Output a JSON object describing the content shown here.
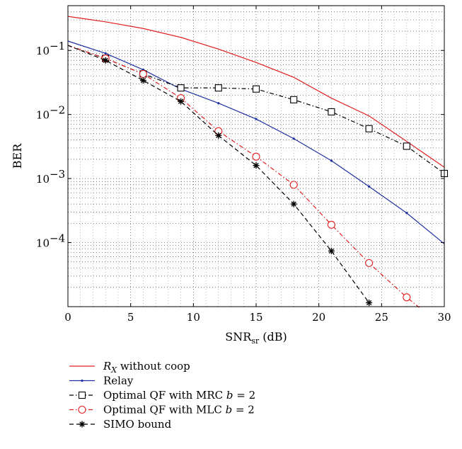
{
  "chart_data": {
    "type": "line",
    "xlabel": "SNR",
    "xlabel_sub": "sr",
    "xlabel_unit": "(dB)",
    "ylabel": "BER",
    "xlim": [
      0,
      30
    ],
    "ylim": [
      1e-05,
      0.5
    ],
    "yscale": "log",
    "grid": true,
    "legend_position": "below",
    "x_ticks": [
      0,
      5,
      10,
      15,
      20,
      25,
      30
    ],
    "y_ticks": [
      {
        "value": 0.1,
        "base": "10",
        "exp": "−1"
      },
      {
        "value": 0.01,
        "base": "10",
        "exp": "−2"
      },
      {
        "value": 0.001,
        "base": "10",
        "exp": "−3"
      },
      {
        "value": 0.0001,
        "base": "10",
        "exp": "−4"
      }
    ],
    "series": [
      {
        "key": "rx",
        "name_main": "R",
        "name_sub": "X",
        "name_rest": " without coop",
        "color": "#e02020",
        "dash": "",
        "marker": "none",
        "points": [
          [
            0,
            0.34
          ],
          [
            3,
            0.28
          ],
          [
            6,
            0.22
          ],
          [
            9,
            0.16
          ],
          [
            12,
            0.105
          ],
          [
            15,
            0.065
          ],
          [
            18,
            0.038
          ],
          [
            21,
            0.018
          ],
          [
            24,
            0.0095
          ],
          [
            27,
            0.0038
          ],
          [
            30,
            0.0015
          ]
        ],
        "marker_points": []
      },
      {
        "key": "relay",
        "name_main": "Relay",
        "name_sub": "",
        "name_rest": "",
        "color": "#2030a0",
        "dash": "",
        "marker": "dot",
        "points": [
          [
            0,
            0.14
          ],
          [
            3,
            0.09
          ],
          [
            6,
            0.05
          ],
          [
            9,
            0.025
          ],
          [
            12,
            0.015
          ],
          [
            15,
            0.0085
          ],
          [
            18,
            0.0042
          ],
          [
            21,
            0.0019
          ],
          [
            24,
            0.00075
          ],
          [
            27,
            0.00029
          ],
          [
            30,
            9.57e-05
          ]
        ],
        "marker_points": [
          [
            3,
            0.09
          ],
          [
            6,
            0.05
          ],
          [
            9,
            0.025
          ],
          [
            12,
            0.015
          ],
          [
            15,
            0.0085
          ],
          [
            18,
            0.0042
          ],
          [
            21,
            0.0019
          ],
          [
            24,
            0.00075
          ],
          [
            27,
            0.00029
          ]
        ]
      },
      {
        "key": "qf_mrc",
        "name_main": "Optimal QF with MRC ",
        "name_sub": "",
        "name_rest": "",
        "name_italic": "b",
        "name_tail": " = 2",
        "color": "#000000",
        "dash": "6,3,1.5,3",
        "marker": "square",
        "points": [
          [
            0,
            0.12
          ],
          [
            3,
            0.075
          ],
          [
            6,
            0.043
          ],
          [
            9,
            0.026
          ],
          [
            12,
            0.026
          ],
          [
            15,
            0.025
          ],
          [
            18,
            0.017
          ],
          [
            21,
            0.011
          ],
          [
            24,
            0.006
          ],
          [
            27,
            0.0032
          ],
          [
            30,
            0.0012
          ]
        ],
        "marker_points": [
          [
            3,
            0.075
          ],
          [
            6,
            0.043
          ],
          [
            9,
            0.026
          ],
          [
            12,
            0.026
          ],
          [
            15,
            0.025
          ],
          [
            18,
            0.017
          ],
          [
            21,
            0.011
          ],
          [
            24,
            0.006
          ],
          [
            27,
            0.0032
          ],
          [
            30,
            0.0012
          ]
        ]
      },
      {
        "key": "qf_mlc",
        "name_main": "Optimal QF with MLC ",
        "name_sub": "",
        "name_rest": "",
        "name_italic": "b",
        "name_tail": " = 2",
        "color": "#e02020",
        "dash": "6,3,1.5,3",
        "marker": "circle",
        "points": [
          [
            0,
            0.12
          ],
          [
            3,
            0.075
          ],
          [
            6,
            0.043
          ],
          [
            9,
            0.018
          ],
          [
            12,
            0.0055
          ],
          [
            15,
            0.0022
          ],
          [
            18,
            0.0008
          ],
          [
            21,
            0.00019
          ],
          [
            24,
            4.8e-05
          ],
          [
            27,
            1.4e-05
          ],
          [
            28,
            9.7e-06
          ]
        ],
        "marker_points": [
          [
            3,
            0.075
          ],
          [
            6,
            0.043
          ],
          [
            9,
            0.018
          ],
          [
            12,
            0.0055
          ],
          [
            15,
            0.0022
          ],
          [
            18,
            0.0008
          ],
          [
            21,
            0.00019
          ],
          [
            24,
            4.8e-05
          ],
          [
            27,
            1.4e-05
          ]
        ]
      },
      {
        "key": "simo",
        "name_main": "SIMO bound",
        "name_sub": "",
        "name_rest": "",
        "color": "#000000",
        "dash": "6,4",
        "marker": "star",
        "points": [
          [
            0,
            0.12
          ],
          [
            3,
            0.07
          ],
          [
            6,
            0.034
          ],
          [
            9,
            0.016
          ],
          [
            12,
            0.0047
          ],
          [
            15,
            0.0016
          ],
          [
            18,
            0.0004
          ],
          [
            21,
            7.4e-05
          ],
          [
            24,
            1.15e-05
          ]
        ],
        "marker_points": [
          [
            3,
            0.07
          ],
          [
            6,
            0.034
          ],
          [
            9,
            0.016
          ],
          [
            12,
            0.0047
          ],
          [
            15,
            0.0016
          ],
          [
            18,
            0.0004
          ],
          [
            21,
            7.4e-05
          ],
          [
            24,
            1.15e-05
          ]
        ]
      }
    ]
  }
}
